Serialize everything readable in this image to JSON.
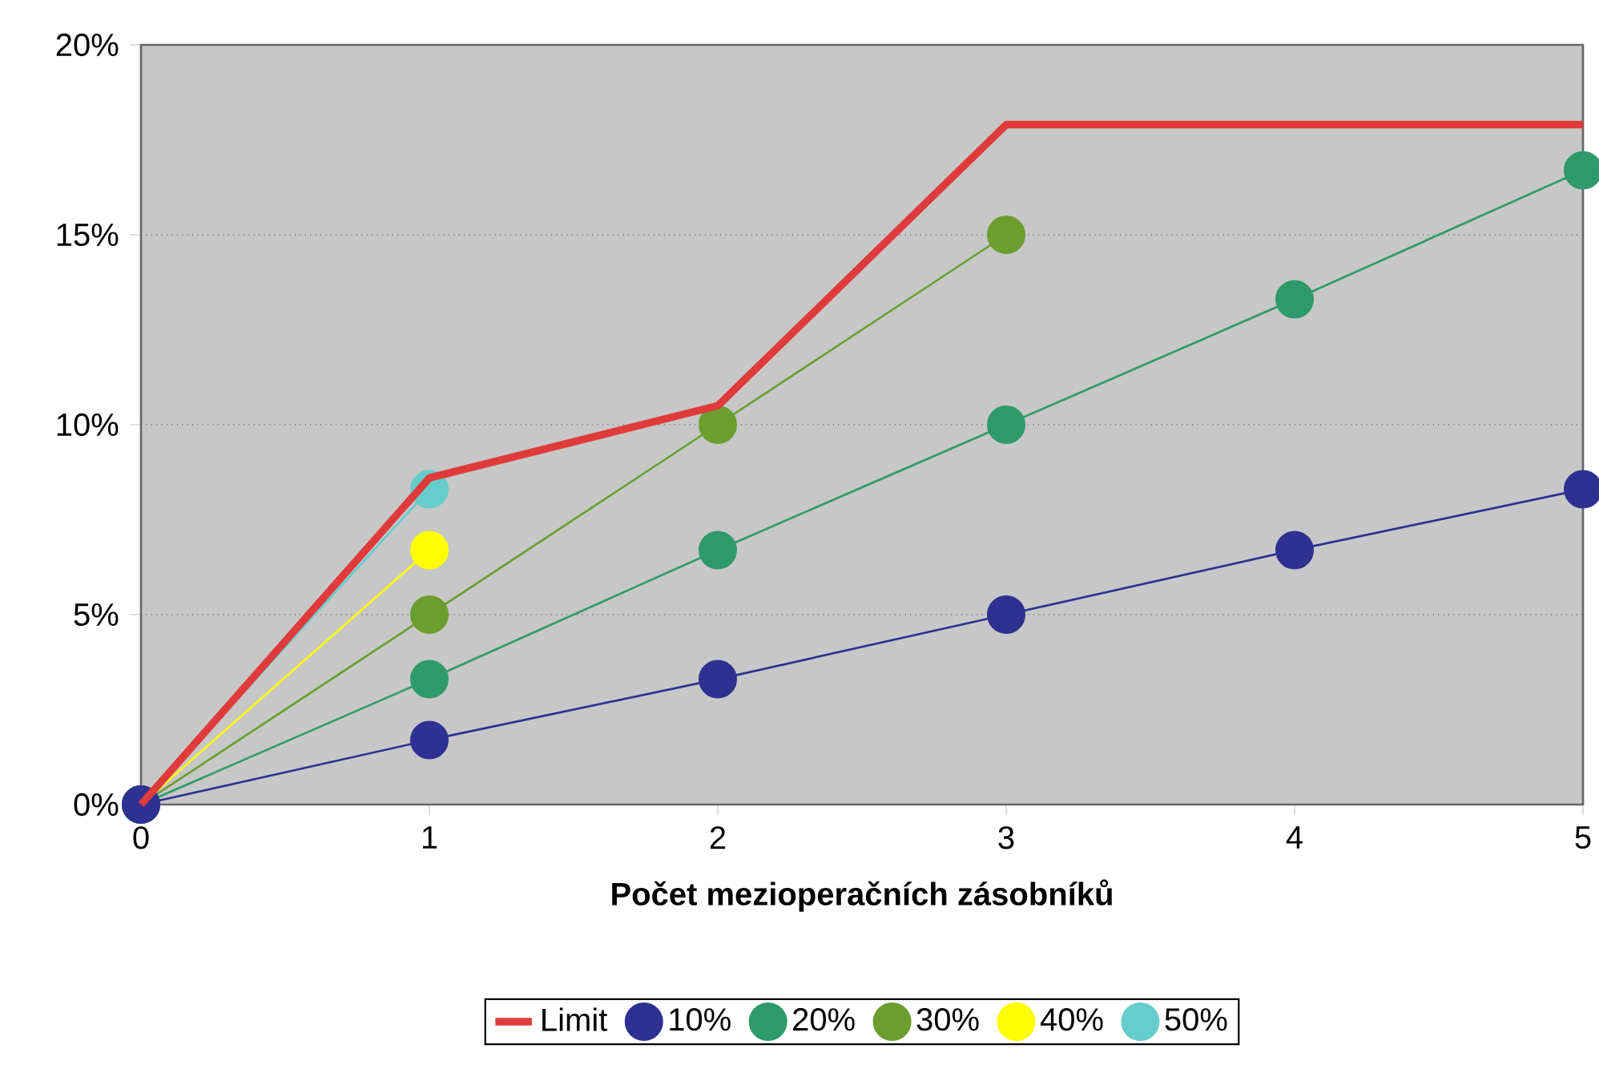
{
  "chart_data": {
    "type": "line",
    "xlabel": "Počet mezioperačních zásobníků",
    "x": [
      0,
      1,
      2,
      3,
      4,
      5
    ],
    "xlim": [
      0,
      5
    ],
    "xticks": [
      0,
      1,
      2,
      3,
      4,
      5
    ],
    "ylim": [
      0,
      20
    ],
    "yticks": [
      {
        "value": 0,
        "label": "0%"
      },
      {
        "value": 5,
        "label": "5%"
      },
      {
        "value": 10,
        "label": "10%"
      },
      {
        "value": 15,
        "label": "15%"
      },
      {
        "value": 20,
        "label": "20%"
      }
    ],
    "grid": "y",
    "legend": "bottom",
    "marker": "circle",
    "series": [
      {
        "name": "Limit",
        "color": "#e03a3a",
        "marker": "none",
        "x": [
          0,
          1,
          2,
          3,
          5
        ],
        "values": [
          0,
          8.6,
          10.5,
          17.9,
          17.9
        ]
      },
      {
        "name": "10%",
        "color": "#2e3192",
        "values": [
          0,
          1.7,
          3.3,
          5,
          6.7,
          8.3
        ]
      },
      {
        "name": "20%",
        "color": "#2e9a6a",
        "values": [
          0,
          3.3,
          6.7,
          10,
          13.3,
          16.7
        ]
      },
      {
        "name": "30%",
        "color": "#6b9e2e",
        "x": [
          0,
          1,
          2,
          3
        ],
        "values": [
          0,
          5,
          10,
          15
        ]
      },
      {
        "name": "40%",
        "color": "#ffff00",
        "x": [
          0,
          1
        ],
        "values": [
          0,
          6.7
        ]
      },
      {
        "name": "50%",
        "color": "#66cccc",
        "x": [
          0,
          1
        ],
        "values": [
          0,
          8.3
        ]
      }
    ]
  }
}
